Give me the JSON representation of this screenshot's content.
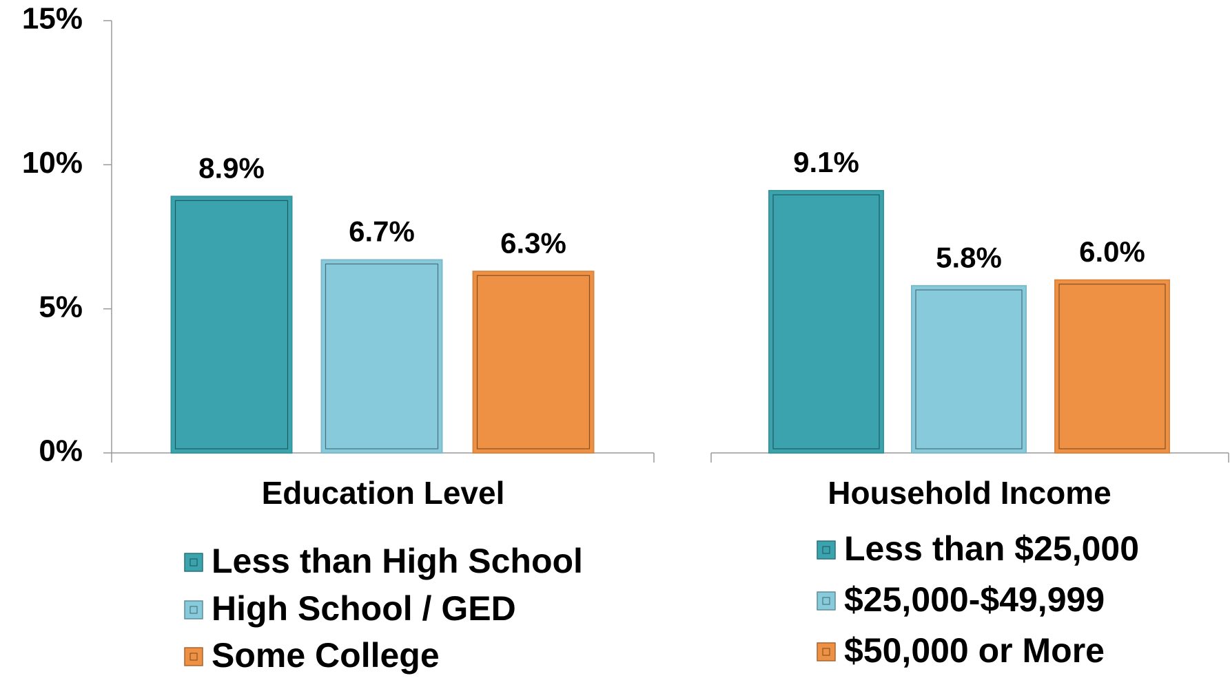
{
  "chart_data": [
    {
      "type": "bar",
      "xlabel": "Education Level",
      "series": [
        {
          "name": "Less than High School",
          "color": "#3ba3ae",
          "values": [
            8.9
          ],
          "value_labels": [
            "8.9%"
          ]
        },
        {
          "name": "High School / GED",
          "color": "#87cadb",
          "values": [
            6.7
          ],
          "value_labels": [
            "6.7%"
          ]
        },
        {
          "name": "Some College",
          "color": "#ee9144",
          "values": [
            6.3
          ],
          "value_labels": [
            "6.3%"
          ]
        }
      ],
      "ylim": [
        0,
        15
      ],
      "yticks": [
        {
          "value": 0,
          "label": "0%"
        },
        {
          "value": 5,
          "label": "5%"
        },
        {
          "value": 10,
          "label": "10%"
        },
        {
          "value": 15,
          "label": "15%"
        }
      ]
    },
    {
      "type": "bar",
      "xlabel": "Household Income",
      "series": [
        {
          "name": "Less than $25,000",
          "color": "#3ba3ae",
          "values": [
            9.1
          ],
          "value_labels": [
            "9.1%"
          ]
        },
        {
          "name": "$25,000-$49,999",
          "color": "#87cadb",
          "values": [
            5.8
          ],
          "value_labels": [
            "5.8%"
          ]
        },
        {
          "name": "$50,000 or More",
          "color": "#ee9144",
          "values": [
            6.0
          ],
          "value_labels": [
            "6.0%"
          ]
        }
      ],
      "ylim": [
        0,
        15
      ]
    }
  ]
}
